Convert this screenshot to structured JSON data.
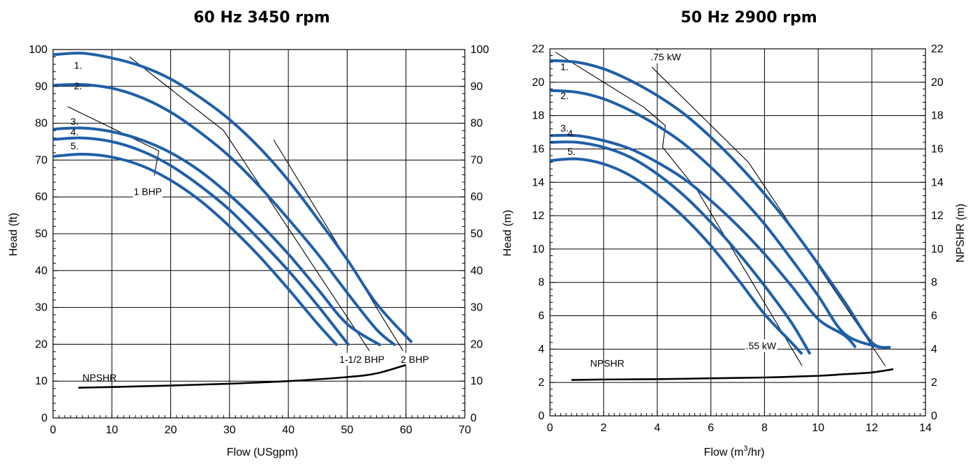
{
  "chart_data": [
    {
      "type": "line",
      "title": "60 Hz  3450 rpm",
      "xlabel": "Flow (USgpm)",
      "ylabel": "Head (ft)",
      "ylabel_right": "",
      "xlim": [
        0,
        70
      ],
      "ylim": [
        0,
        100
      ],
      "xticks": [
        0,
        10,
        20,
        30,
        40,
        50,
        60,
        70
      ],
      "yticks": [
        0,
        10,
        20,
        30,
        40,
        50,
        60,
        70,
        80,
        90,
        100
      ],
      "grid": true,
      "line_color": "#1f5fa8",
      "series": [
        {
          "name": "1.",
          "points": [
            [
              0,
              98.6
            ],
            [
              5,
              99.0
            ],
            [
              10,
              97.7
            ],
            [
              15,
              95.5
            ],
            [
              20,
              92.0
            ],
            [
              25,
              87.0
            ],
            [
              30,
              81.0
            ],
            [
              35,
              73.5
            ],
            [
              40,
              64.5
            ],
            [
              45,
              54.0
            ],
            [
              50,
              43.0
            ],
            [
              55,
              31.0
            ],
            [
              61,
              20.5
            ]
          ]
        },
        {
          "name": "2.",
          "points": [
            [
              0,
              90.3
            ],
            [
              5,
              90.5
            ],
            [
              10,
              89.5
            ],
            [
              15,
              87.0
            ],
            [
              20,
              83.0
            ],
            [
              25,
              77.5
            ],
            [
              30,
              71.0
            ],
            [
              35,
              63.0
            ],
            [
              40,
              54.0
            ],
            [
              45,
              44.5
            ],
            [
              50,
              34.0
            ],
            [
              55,
              24.0
            ],
            [
              58.2,
              19.7
            ]
          ]
        },
        {
          "name": "3.",
          "points": [
            [
              0,
              78.4
            ],
            [
              5,
              78.7
            ],
            [
              10,
              77.7
            ],
            [
              15,
              75.5
            ],
            [
              20,
              72.0
            ],
            [
              25,
              67.0
            ],
            [
              30,
              60.5
            ],
            [
              35,
              53.0
            ],
            [
              40,
              44.5
            ],
            [
              45,
              35.0
            ],
            [
              50,
              25.5
            ],
            [
              55.7,
              19.7
            ]
          ]
        },
        {
          "name": "4.",
          "points": [
            [
              0,
              75.6
            ],
            [
              5,
              76.0
            ],
            [
              10,
              75.0
            ],
            [
              15,
              72.5
            ],
            [
              20,
              68.5
            ],
            [
              25,
              63.0
            ],
            [
              30,
              56.5
            ],
            [
              35,
              48.5
            ],
            [
              40,
              40.0
            ],
            [
              45,
              30.5
            ],
            [
              50.3,
              19.7
            ]
          ]
        },
        {
          "name": "5.",
          "points": [
            [
              0,
              71.0
            ],
            [
              5,
              71.6
            ],
            [
              10,
              70.8
            ],
            [
              15,
              68.5
            ],
            [
              20,
              64.5
            ],
            [
              25,
              59.0
            ],
            [
              30,
              52.0
            ],
            [
              35,
              44.0
            ],
            [
              40,
              35.0
            ],
            [
              45,
              25.5
            ],
            [
              48.3,
              19.7
            ]
          ]
        }
      ],
      "npshr": {
        "label": "NPSHR",
        "points": [
          [
            4.3,
            8.2
          ],
          [
            10,
            8.4
          ],
          [
            20,
            8.8
          ],
          [
            30,
            9.3
          ],
          [
            40,
            10.0
          ],
          [
            50,
            11.1
          ],
          [
            55,
            12.1
          ],
          [
            60,
            14.4
          ]
        ]
      },
      "power_lines": [
        {
          "label": "1 BHP",
          "points": [
            [
              2.5,
              84.5
            ],
            [
              18,
              72.5
            ]
          ],
          "leader": [
            [
              18,
              72.5
            ],
            [
              17.2,
              65.8
            ]
          ]
        },
        {
          "label": "1-1/2 BHP",
          "points": [
            [
              13,
              98.0
            ],
            [
              29,
              78.0
            ],
            [
              53.8,
              18.2
            ]
          ]
        },
        {
          "label": "2 BHP",
          "points": [
            [
              37.5,
              75.5
            ],
            [
              59.5,
              18.2
            ]
          ]
        }
      ]
    },
    {
      "type": "line",
      "title": "50 Hz  2900 rpm",
      "xlabel": "Flow (m3/hr)",
      "ylabel": "Head (m)",
      "ylabel_right": "NPSHR (m)",
      "xlim": [
        0,
        14
      ],
      "ylim": [
        0,
        22
      ],
      "xticks": [
        0,
        2,
        4,
        6,
        8,
        10,
        12,
        14
      ],
      "yticks": [
        0,
        2,
        4,
        6,
        8,
        10,
        12,
        14,
        16,
        18,
        20,
        22
      ],
      "grid": true,
      "line_color": "#1f5fa8",
      "series": [
        {
          "name": "1.",
          "points": [
            [
              0,
              21.3
            ],
            [
              1,
              21.2
            ],
            [
              2,
              20.8
            ],
            [
              3,
              20.1
            ],
            [
              4,
              19.2
            ],
            [
              5,
              18.1
            ],
            [
              6,
              16.7
            ],
            [
              7,
              15.1
            ],
            [
              8,
              13.3
            ],
            [
              9,
              11.3
            ],
            [
              10,
              9.1
            ],
            [
              11,
              6.8
            ],
            [
              12,
              4.4
            ],
            [
              12.7,
              4.1
            ]
          ]
        },
        {
          "name": "2.",
          "points": [
            [
              0,
              19.5
            ],
            [
              1,
              19.4
            ],
            [
              2,
              19.0
            ],
            [
              3,
              18.3
            ],
            [
              4,
              17.4
            ],
            [
              5,
              16.3
            ],
            [
              6,
              14.9
            ],
            [
              7,
              13.3
            ],
            [
              8,
              11.5
            ],
            [
              9,
              9.4
            ],
            [
              10,
              7.2
            ],
            [
              11,
              4.9
            ],
            [
              12.3,
              4.1
            ]
          ]
        },
        {
          "name": "3.",
          "points": [
            [
              0,
              16.8
            ],
            [
              1,
              16.8
            ],
            [
              2,
              16.5
            ],
            [
              3,
              16.0
            ],
            [
              4,
              15.2
            ],
            [
              5,
              14.2
            ],
            [
              6,
              12.9
            ],
            [
              7,
              11.4
            ],
            [
              8,
              9.7
            ],
            [
              9,
              7.8
            ],
            [
              10,
              5.8
            ],
            [
              11,
              4.8
            ],
            [
              11.4,
              4.1
            ]
          ]
        },
        {
          "name": "4.",
          "points": [
            [
              0,
              16.4
            ],
            [
              1,
              16.4
            ],
            [
              2,
              16.1
            ],
            [
              3,
              15.5
            ],
            [
              4,
              14.5
            ],
            [
              5,
              13.2
            ],
            [
              6,
              11.6
            ],
            [
              7,
              9.8
            ],
            [
              8,
              7.8
            ],
            [
              9,
              5.6
            ],
            [
              9.7,
              3.7
            ]
          ]
        },
        {
          "name": "5.",
          "points": [
            [
              0,
              15.3
            ],
            [
              1,
              15.4
            ],
            [
              2,
              15.1
            ],
            [
              3,
              14.4
            ],
            [
              4,
              13.3
            ],
            [
              5,
              11.9
            ],
            [
              6,
              10.2
            ],
            [
              7,
              8.2
            ],
            [
              8,
              6.1
            ],
            [
              9,
              4.4
            ],
            [
              9.4,
              3.7
            ]
          ]
        }
      ],
      "npshr": {
        "label": "NPSHR",
        "points": [
          [
            0.8,
            2.15
          ],
          [
            2,
            2.18
          ],
          [
            4,
            2.2
          ],
          [
            6,
            2.25
          ],
          [
            8,
            2.3
          ],
          [
            10,
            2.4
          ],
          [
            11,
            2.5
          ],
          [
            12,
            2.6
          ],
          [
            12.8,
            2.8
          ]
        ]
      },
      "power_lines": [
        {
          "label": ".75 kW",
          "points": [
            [
              3.8,
              20.9
            ],
            [
              7.4,
              15.2
            ],
            [
              12.5,
              3.0
            ]
          ]
        },
        {
          "label": ".55 kW",
          "points": [
            [
              0.2,
              21.8
            ],
            [
              3.5,
              18.5
            ],
            [
              4.3,
              17.4
            ],
            [
              4.2,
              16.1
            ],
            [
              5.5,
              13.5
            ],
            [
              9.4,
              3.0
            ]
          ]
        }
      ]
    }
  ]
}
